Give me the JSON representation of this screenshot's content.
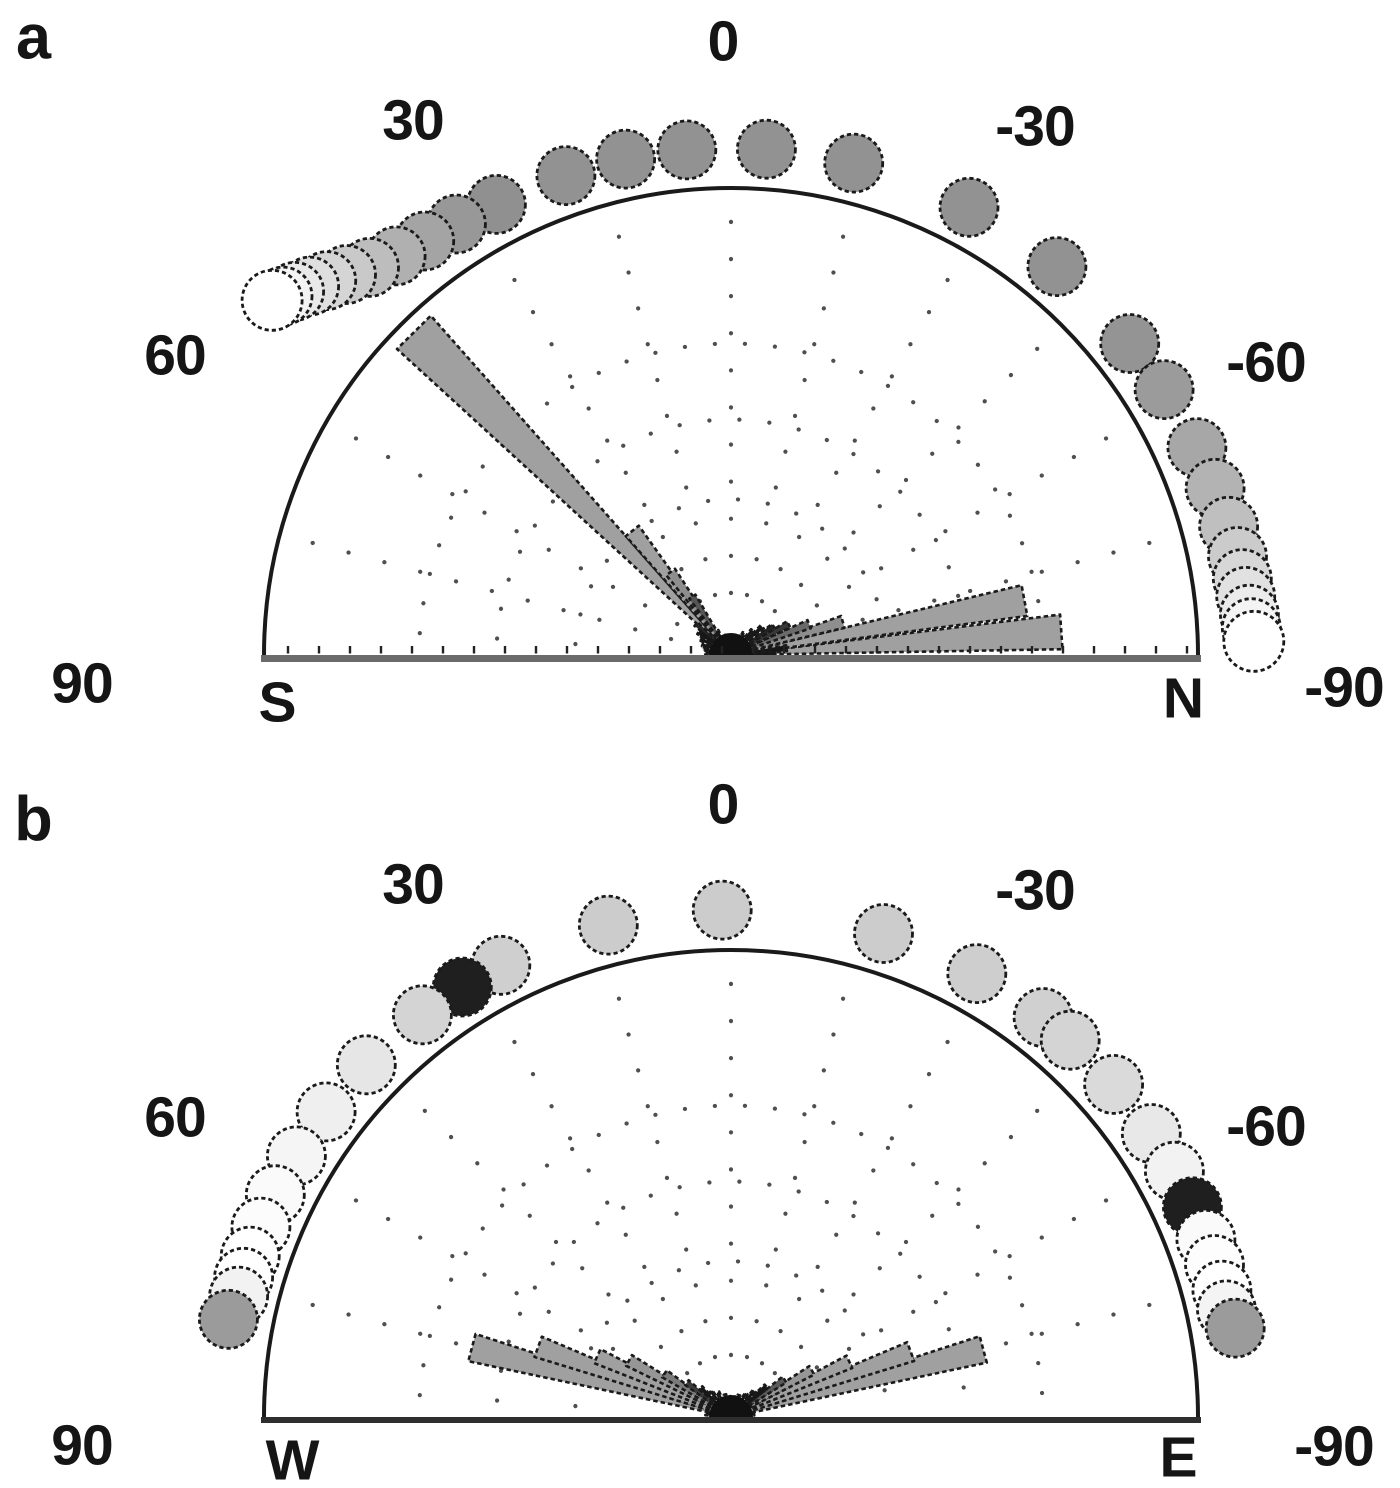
{
  "chart_data": [
    {
      "panel": "a",
      "type": "bar",
      "polar": true,
      "variant": "semicircular orientation rose with individual heading dots",
      "angle_axis": {
        "unit": "deg",
        "zero_position": "top",
        "range": [
          90,
          -90
        ],
        "ticks": [
          {
            "label": "0",
            "angle": 0
          },
          {
            "label": "30",
            "angle": 30
          },
          {
            "label": "-30",
            "angle": -30
          },
          {
            "label": "60",
            "angle": 60
          },
          {
            "label": "-60",
            "angle": -60
          },
          {
            "label": "90",
            "angle": 90
          },
          {
            "label": "-90",
            "angle": -90
          }
        ],
        "left_cardinal": "S",
        "right_cardinal": "N"
      },
      "individual_headings": [
        {
          "angle": 27.5,
          "fill": "#909090",
          "ring": 508
        },
        {
          "angle": 32.5,
          "fill": "#989898",
          "ring": 511
        },
        {
          "angle": 36.5,
          "fill": "#a4a4a4",
          "ring": 515
        },
        {
          "angle": 40.0,
          "fill": "#b0b0b0",
          "ring": 521
        },
        {
          "angle": 43.0,
          "fill": "#bdbdbd",
          "ring": 530
        },
        {
          "angle": 45.3,
          "fill": "#c9c9c9",
          "ring": 541
        },
        {
          "angle": 47.2,
          "fill": "#d5d5d5",
          "ring": 551
        },
        {
          "angle": 48.8,
          "fill": "#dfdfdf",
          "ring": 560
        },
        {
          "angle": 50.2,
          "fill": "#e9e9e9",
          "ring": 568
        },
        {
          "angle": 51.3,
          "fill": "#f3f3f3",
          "ring": 574
        },
        {
          "angle": 52.3,
          "fill": "#ffffff",
          "ring": 580,
          "r": 30
        },
        {
          "angle": 19,
          "fill": "#929292"
        },
        {
          "angle": 12,
          "fill": "#929292"
        },
        {
          "angle": 5,
          "fill": "#929292"
        },
        {
          "angle": -4,
          "fill": "#929292"
        },
        {
          "angle": -14,
          "fill": "#929292"
        },
        {
          "angle": -28,
          "fill": "#929292"
        },
        {
          "angle": -40,
          "fill": "#929292"
        },
        {
          "angle": -52,
          "fill": "#949494",
          "ring": 506
        },
        {
          "angle": -58.5,
          "fill": "#9b9b9b",
          "ring": 508
        },
        {
          "angle": -66,
          "fill": "#a7a7a7",
          "ring": 510
        },
        {
          "angle": -71,
          "fill": "#b3b3b3",
          "ring": 512
        },
        {
          "angle": -75.5,
          "fill": "#bfbfbf",
          "ring": 514
        },
        {
          "angle": -79,
          "fill": "#cbcbcb",
          "ring": 516
        },
        {
          "angle": -81.5,
          "fill": "#d7d7d7",
          "ring": 517
        },
        {
          "angle": -83.5,
          "fill": "#e1e1e1",
          "ring": 518
        },
        {
          "angle": -85.5,
          "fill": "#ebebeb",
          "ring": 520
        },
        {
          "angle": -87,
          "fill": "#f4f4f4",
          "ring": 521
        },
        {
          "angle": -88.5,
          "fill": "#ffffff",
          "ring": 523,
          "r": 30
        }
      ],
      "rose_bars": [
        {
          "angle": 44.5,
          "length": 0.97,
          "fill": "#a0a0a0"
        },
        {
          "angle": 38.5,
          "length": 0.34,
          "fill": "#a0a0a0"
        },
        {
          "angle": 36.0,
          "length": 0.22,
          "fill": "#8e8e8e"
        },
        {
          "angle": 33.5,
          "length": 0.15,
          "fill": "#565656"
        },
        {
          "angle": 48.5,
          "length": 0.1,
          "fill": "#2a2a2a"
        },
        {
          "angle": -86.0,
          "length": 0.71,
          "fill": "#a0a0a0"
        },
        {
          "angle": -79.5,
          "length": 0.64,
          "fill": "#a0a0a0"
        },
        {
          "angle": -73.5,
          "length": 0.25,
          "fill": "#8e8e8e"
        },
        {
          "angle": -68.5,
          "length": 0.18,
          "fill": "#6a6a6a"
        },
        {
          "angle": -62.0,
          "length": 0.14,
          "fill": "#383838"
        },
        {
          "angle": -56.0,
          "length": 0.11,
          "fill": "#242424"
        },
        {
          "angle": 55,
          "length": 0.085,
          "fill": "#161616"
        },
        {
          "angle": 62,
          "length": 0.075,
          "fill": "#161616"
        },
        {
          "angle": 70,
          "length": 0.065,
          "fill": "#161616"
        },
        {
          "angle": 78,
          "length": 0.06,
          "fill": "#161616"
        },
        {
          "angle": 86,
          "length": 0.055,
          "fill": "#161616"
        },
        {
          "angle": 30,
          "length": 0.06,
          "fill": "#161616"
        },
        {
          "angle": 20,
          "length": 0.045,
          "fill": "#161616"
        },
        {
          "angle": 10,
          "length": 0.04,
          "fill": "#161616"
        },
        {
          "angle": 0,
          "length": 0.035,
          "fill": "#161616"
        },
        {
          "angle": -10,
          "length": 0.04,
          "fill": "#161616"
        },
        {
          "angle": -20,
          "length": 0.045,
          "fill": "#161616"
        },
        {
          "angle": -30,
          "length": 0.055,
          "fill": "#161616"
        },
        {
          "angle": -41,
          "length": 0.07,
          "fill": "#161616"
        },
        {
          "angle": -48,
          "length": 0.09,
          "fill": "#161616"
        },
        {
          "angle": -83,
          "length": 0.12,
          "fill": "#161616"
        },
        {
          "angle": -88,
          "length": 0.095,
          "fill": "#161616"
        }
      ]
    },
    {
      "panel": "b",
      "type": "bar",
      "polar": true,
      "variant": "semicircular orientation rose with individual heading dots",
      "angle_axis": {
        "unit": "deg",
        "zero_position": "top",
        "range": [
          90,
          -90
        ],
        "ticks": [
          {
            "label": "0",
            "angle": 0
          },
          {
            "label": "30",
            "angle": 30
          },
          {
            "label": "-30",
            "angle": -30
          },
          {
            "label": "60",
            "angle": 60
          },
          {
            "label": "-60",
            "angle": -60
          },
          {
            "label": "90",
            "angle": 90
          },
          {
            "label": "-90",
            "angle": -90
          }
        ],
        "left_cardinal": "W",
        "right_cardinal": "E"
      },
      "individual_headings": [
        {
          "angle": 27,
          "fill": "#cfcfcf"
        },
        {
          "angle": 32,
          "fill": "#1f1f1f"
        },
        {
          "angle": 37.5,
          "fill": "#d4d4d4"
        },
        {
          "angle": 46,
          "fill": "#e6e6e6"
        },
        {
          "angle": 53,
          "fill": "#efefef"
        },
        {
          "angle": 59,
          "fill": "#f5f5f5"
        },
        {
          "angle": 64,
          "fill": "#fafafa"
        },
        {
          "angle": 68,
          "fill": "#fcfcfc"
        },
        {
          "angle": 71.5,
          "fill": "#ffffff"
        },
        {
          "angle": 74,
          "fill": "#ffffff"
        },
        {
          "angle": 76.2,
          "fill": "#f2f2f2"
        },
        {
          "angle": 79,
          "fill": "#9b9b9b",
          "ring": 512
        },
        {
          "angle": 14,
          "fill": "#cccccc"
        },
        {
          "angle": 1,
          "fill": "#cccccc"
        },
        {
          "angle": -17.5,
          "fill": "#cccccc"
        },
        {
          "angle": -29,
          "fill": "#cecece"
        },
        {
          "angle": -38,
          "fill": "#d0d0d0"
        },
        {
          "angle": -42,
          "fill": "#d4d4d4"
        },
        {
          "angle": -49,
          "fill": "#dadada"
        },
        {
          "angle": -56,
          "fill": "#e8e8e8"
        },
        {
          "angle": -61,
          "fill": "#f2f2f2"
        },
        {
          "angle": -65.5,
          "fill": "#1f1f1f"
        },
        {
          "angle": -69.5,
          "fill": "#fafafa"
        },
        {
          "angle": -72.5,
          "fill": "#fdfdfd"
        },
        {
          "angle": -75.5,
          "fill": "#ffffff"
        },
        {
          "angle": -77.8,
          "fill": "#f4f4f4"
        },
        {
          "angle": -80,
          "fill": "#9b9b9b",
          "ring": 512
        }
      ],
      "rose_bars": [
        {
          "angle": 75,
          "length": 0.575,
          "fill": "#a0a0a0"
        },
        {
          "angle": 70,
          "length": 0.44,
          "fill": "#a0a0a0"
        },
        {
          "angle": 65.5,
          "length": 0.315,
          "fill": "#a0a0a0"
        },
        {
          "angle": 61,
          "length": 0.25,
          "fill": "#969696"
        },
        {
          "angle": 57,
          "length": 0.17,
          "fill": "#7a7a7a"
        },
        {
          "angle": 52,
          "length": 0.12,
          "fill": "#3c3c3c"
        },
        {
          "angle": 46,
          "length": 0.09,
          "fill": "#161616"
        },
        {
          "angle": 38,
          "length": 0.07,
          "fill": "#161616"
        },
        {
          "angle": 28,
          "length": 0.06,
          "fill": "#161616"
        },
        {
          "angle": 15,
          "length": 0.05,
          "fill": "#161616"
        },
        {
          "angle": 5,
          "length": 0.045,
          "fill": "#161616"
        },
        {
          "angle": 83,
          "length": 0.055,
          "fill": "#161616"
        },
        {
          "angle": -75,
          "length": 0.56,
          "fill": "#a0a0a0"
        },
        {
          "angle": -70,
          "length": 0.41,
          "fill": "#a0a0a0"
        },
        {
          "angle": -65,
          "length": 0.28,
          "fill": "#a0a0a0"
        },
        {
          "angle": -60,
          "length": 0.2,
          "fill": "#969696"
        },
        {
          "angle": -55,
          "length": 0.14,
          "fill": "#5a5a5a"
        },
        {
          "angle": -49,
          "length": 0.1,
          "fill": "#161616"
        },
        {
          "angle": -42,
          "length": 0.075,
          "fill": "#161616"
        },
        {
          "angle": -33,
          "length": 0.06,
          "fill": "#161616"
        },
        {
          "angle": -20,
          "length": 0.05,
          "fill": "#161616"
        },
        {
          "angle": -8,
          "length": 0.045,
          "fill": "#161616"
        },
        {
          "angle": -83,
          "length": 0.05,
          "fill": "#161616"
        }
      ]
    }
  ],
  "style": {
    "outline_color": "#1a1a1a",
    "grid_dot_color": "#4f4f4f",
    "panel_a_baseline_color": "#6b6b6b",
    "panel_b_baseline_color": "#2e2e2e",
    "wedge_default_fill": "#a0a0a0",
    "dot_default_fill": "#929292"
  }
}
